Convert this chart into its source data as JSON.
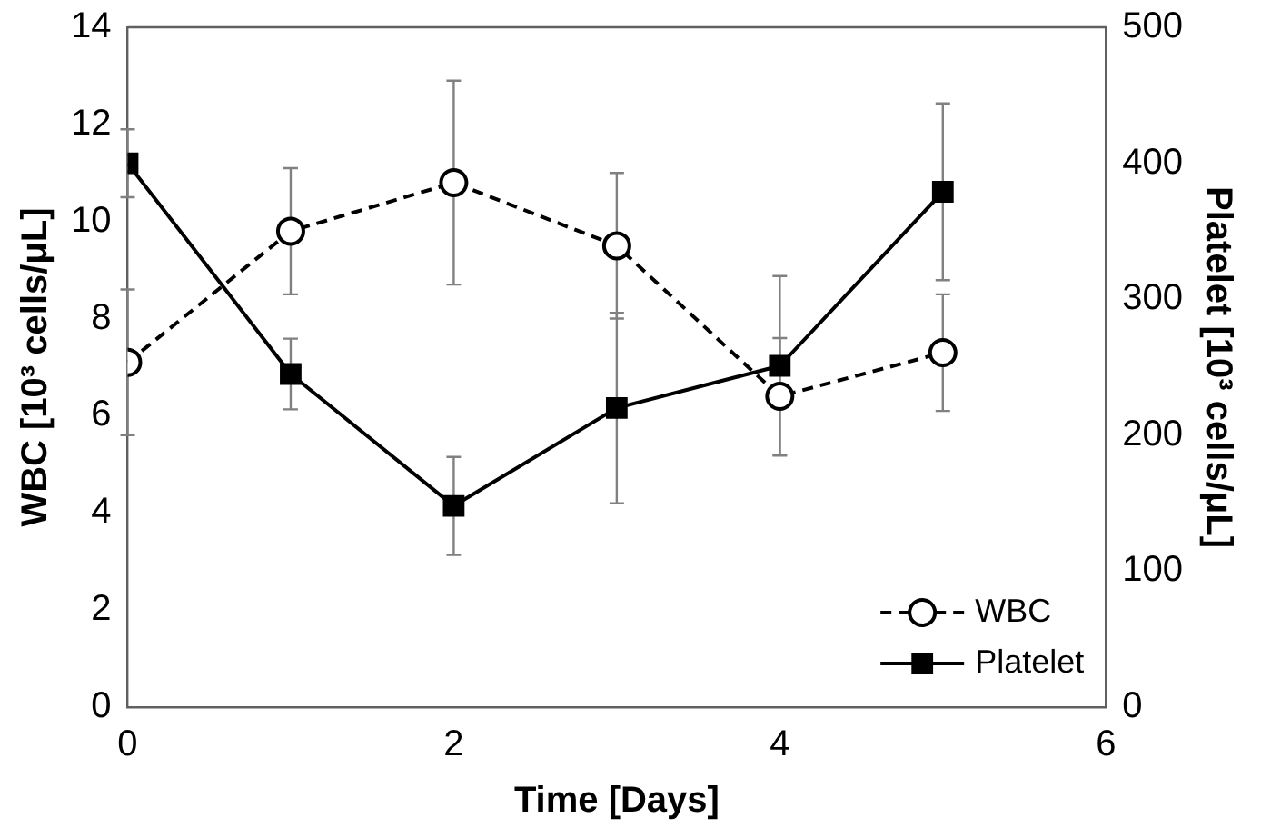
{
  "chart_data": {
    "type": "line",
    "xlabel": "Time [Days]",
    "ylabel": "WBC [10³ cells/μL]",
    "y2label": "Platelet [10³ cells/μL]",
    "x": [
      0,
      1,
      2,
      3,
      4,
      5
    ],
    "xlim": [
      0,
      6
    ],
    "xticks": [
      0,
      2,
      4,
      6
    ],
    "ylim": [
      0,
      14
    ],
    "yticks": [
      0,
      2,
      4,
      6,
      8,
      10,
      12,
      14
    ],
    "y2lim": [
      0,
      500
    ],
    "y2ticks": [
      0,
      100,
      200,
      300,
      400,
      500
    ],
    "series": [
      {
        "name": "WBC",
        "color": "#000000",
        "values": [
          7.1,
          9.8,
          10.8,
          9.5,
          6.4,
          7.3
        ],
        "errors": [
          1.5,
          1.3,
          2.1,
          1.5,
          1.2,
          1.2
        ],
        "marker": "circle",
        "line_style": "dashed"
      },
      {
        "name": "Platelet",
        "color": "#000000",
        "axis": "y2",
        "values": [
          400,
          245,
          148,
          220,
          251,
          379
        ],
        "errors": [
          25,
          26,
          36,
          70,
          66,
          65
        ],
        "marker": "square",
        "line_style": "solid"
      }
    ],
    "grid": false,
    "legend": "bottom right"
  }
}
